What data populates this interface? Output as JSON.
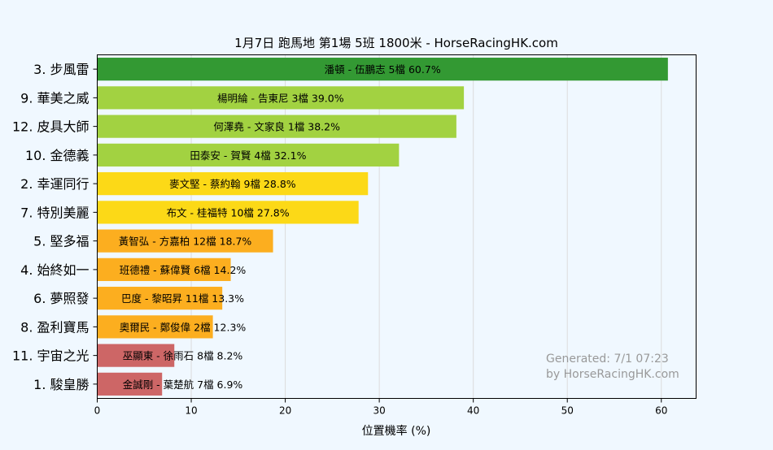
{
  "chart_data": {
    "type": "bar",
    "orientation": "horizontal",
    "title": "1月7日  跑馬地  第1場  5班  1800米 - HorseRacingHK.com",
    "xlabel": "位置機率 (%)",
    "ylabel": "",
    "xlim": [
      0,
      63.7
    ],
    "xticks": [
      "0",
      "10",
      "20",
      "30",
      "40",
      "50",
      "60"
    ],
    "grid": "vertical",
    "categories": [
      "3. 步風雷",
      "9. 華美之威",
      "12. 皮具大師",
      "10. 金德義",
      "2. 幸運同行",
      "7. 特別美麗",
      "5. 堅多福",
      "4. 始終如一",
      "6. 夢照發",
      "8. 盈利寶馬",
      "11. 宇宙之光",
      "1. 駿皇勝"
    ],
    "values": [
      60.7,
      39.0,
      38.2,
      32.1,
      28.8,
      27.8,
      18.7,
      14.2,
      13.3,
      12.3,
      8.2,
      6.9
    ],
    "bar_labels": [
      "潘頓 - 伍鵬志 5檔  60.7%",
      "楊明綸 - 告東尼 3檔  39.0%",
      "何澤堯 - 文家良 1檔  38.2%",
      "田泰安 - 賀賢 4檔  32.1%",
      "麥文堅 - 蔡約翰 9檔  28.8%",
      "布文 - 桂福特 10檔  27.8%",
      "黃智弘 - 方嘉柏 12檔 18.7%",
      "班德禮 - 蘇偉賢 6檔  14.2%",
      "巴度 - 黎昭昇 11檔  13.3%",
      "奧爾民 - 鄭俊偉 2檔  12.3%",
      "巫顯東 - 徐雨石 8檔  8.2%",
      "金誠剛 - 葉楚航 7檔  6.9%"
    ],
    "bar_colors": [
      "#339933",
      "#a2d241",
      "#a2d241",
      "#a2d241",
      "#fcd917",
      "#fcd917",
      "#fcae1f",
      "#fcae1f",
      "#fcae1f",
      "#fcae1f",
      "#cd6666",
      "#cd6666"
    ],
    "annotation": [
      "Generated: 7/1 07:23",
      "by HorseRacingHK.com"
    ]
  }
}
